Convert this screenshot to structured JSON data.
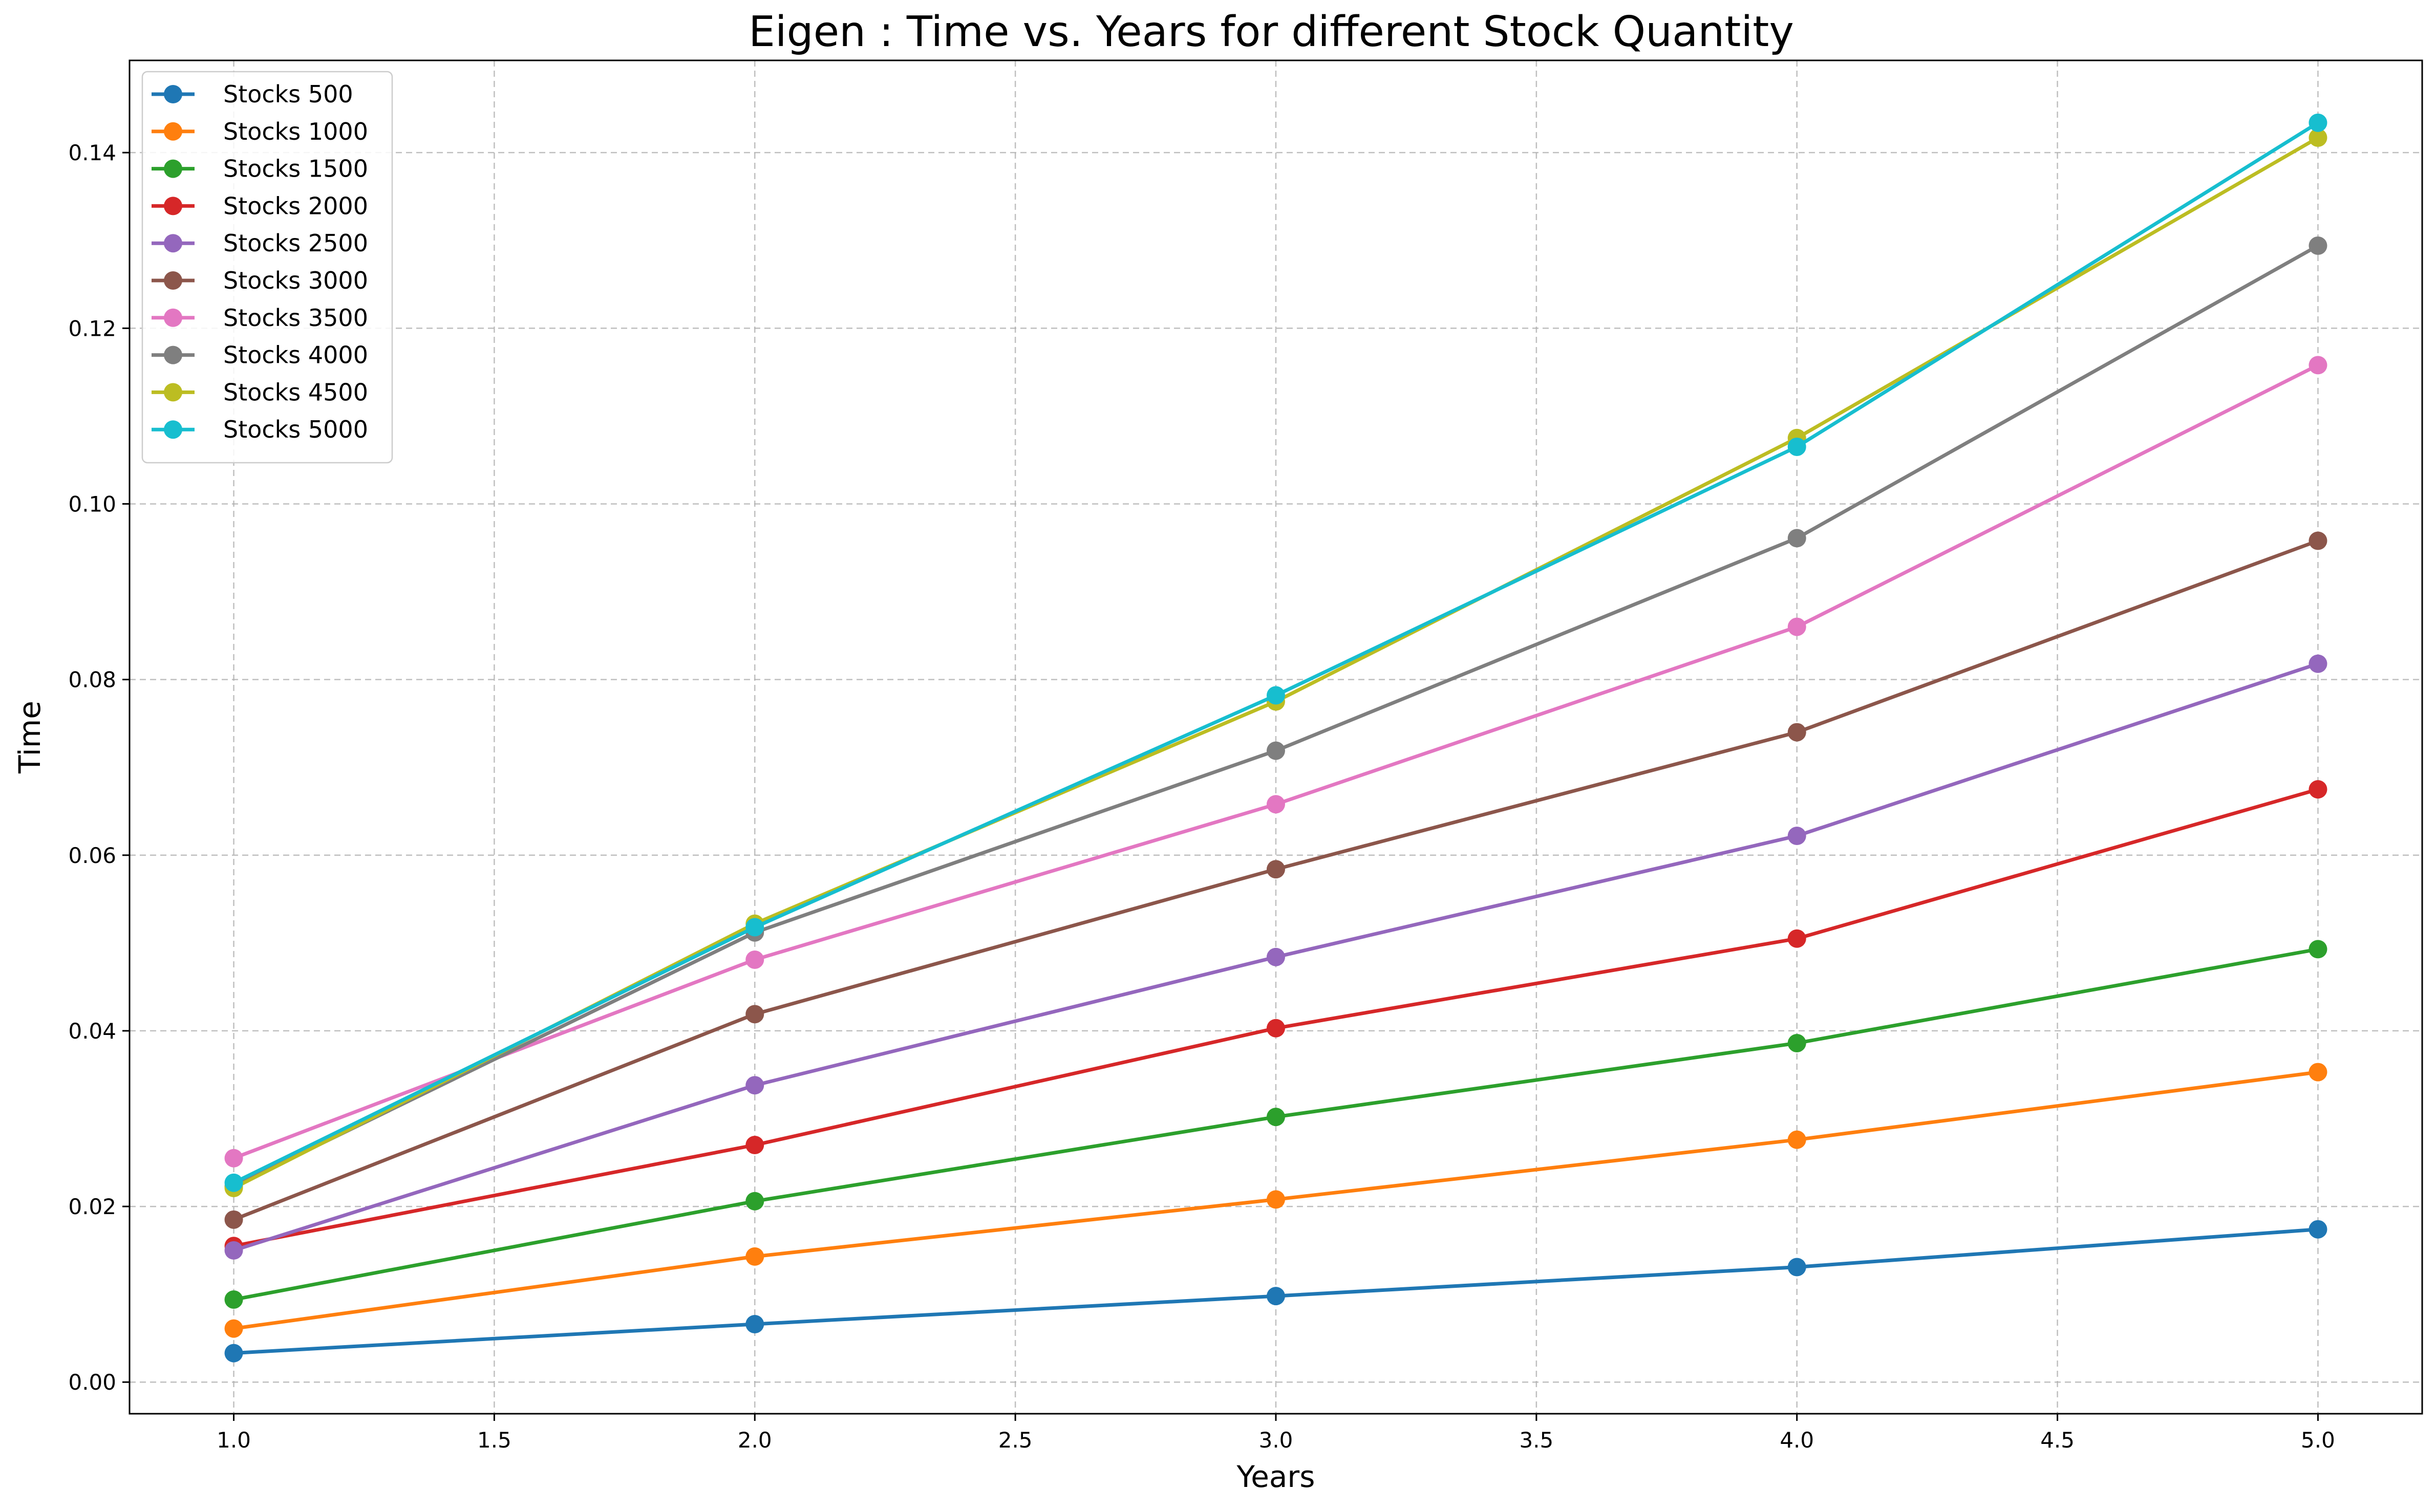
{
  "chart_data": {
    "type": "line",
    "title": "Eigen : Time vs. Years for different Stock Quantity",
    "xlabel": "Years",
    "ylabel": "Time",
    "x": [
      1.0,
      2.0,
      3.0,
      4.0,
      5.0
    ],
    "xlim": [
      0.8,
      5.2
    ],
    "ylim": [
      -0.0036,
      0.1505
    ],
    "xticks": [
      1.0,
      1.5,
      2.0,
      2.5,
      3.0,
      3.5,
      4.0,
      4.5,
      5.0
    ],
    "xtick_labels": [
      "1.0",
      "1.5",
      "2.0",
      "2.5",
      "3.0",
      "3.5",
      "4.0",
      "4.5",
      "5.0"
    ],
    "yticks": [
      0.0,
      0.02,
      0.04,
      0.06,
      0.08,
      0.1,
      0.12,
      0.14
    ],
    "ytick_labels": [
      "0.00",
      "0.02",
      "0.04",
      "0.06",
      "0.08",
      "0.10",
      "0.12",
      "0.14"
    ],
    "grid": true,
    "grid_style": "dashed",
    "legend_position": "top-left",
    "series": [
      {
        "name": "Stocks 500",
        "color": "#1f77b4",
        "values": [
          0.0033,
          0.0066,
          0.0098,
          0.0131,
          0.0174
        ]
      },
      {
        "name": "Stocks 1000",
        "color": "#ff7f0e",
        "values": [
          0.0061,
          0.0143,
          0.0208,
          0.0276,
          0.0353
        ]
      },
      {
        "name": "Stocks 1500",
        "color": "#2ca02c",
        "values": [
          0.0094,
          0.0206,
          0.0302,
          0.0386,
          0.0493
        ]
      },
      {
        "name": "Stocks 2000",
        "color": "#d62728",
        "values": [
          0.0155,
          0.027,
          0.0403,
          0.0505,
          0.0675
        ]
      },
      {
        "name": "Stocks 2500",
        "color": "#9467bd",
        "values": [
          0.015,
          0.0338,
          0.0484,
          0.0622,
          0.0818
        ]
      },
      {
        "name": "Stocks 3000",
        "color": "#8c564b",
        "values": [
          0.0185,
          0.0419,
          0.0584,
          0.074,
          0.0958
        ]
      },
      {
        "name": "Stocks 3500",
        "color": "#e377c2",
        "values": [
          0.0255,
          0.0481,
          0.0658,
          0.086,
          0.1158
        ]
      },
      {
        "name": "Stocks 4000",
        "color": "#7f7f7f",
        "values": [
          0.0223,
          0.0512,
          0.0719,
          0.0961,
          0.1294
        ]
      },
      {
        "name": "Stocks 4500",
        "color": "#bcbd22",
        "values": [
          0.0221,
          0.0522,
          0.0775,
          0.1075,
          0.1417
        ]
      },
      {
        "name": "Stocks 5000",
        "color": "#17becf",
        "values": [
          0.0227,
          0.0518,
          0.0782,
          0.1065,
          0.1434
        ]
      }
    ]
  }
}
